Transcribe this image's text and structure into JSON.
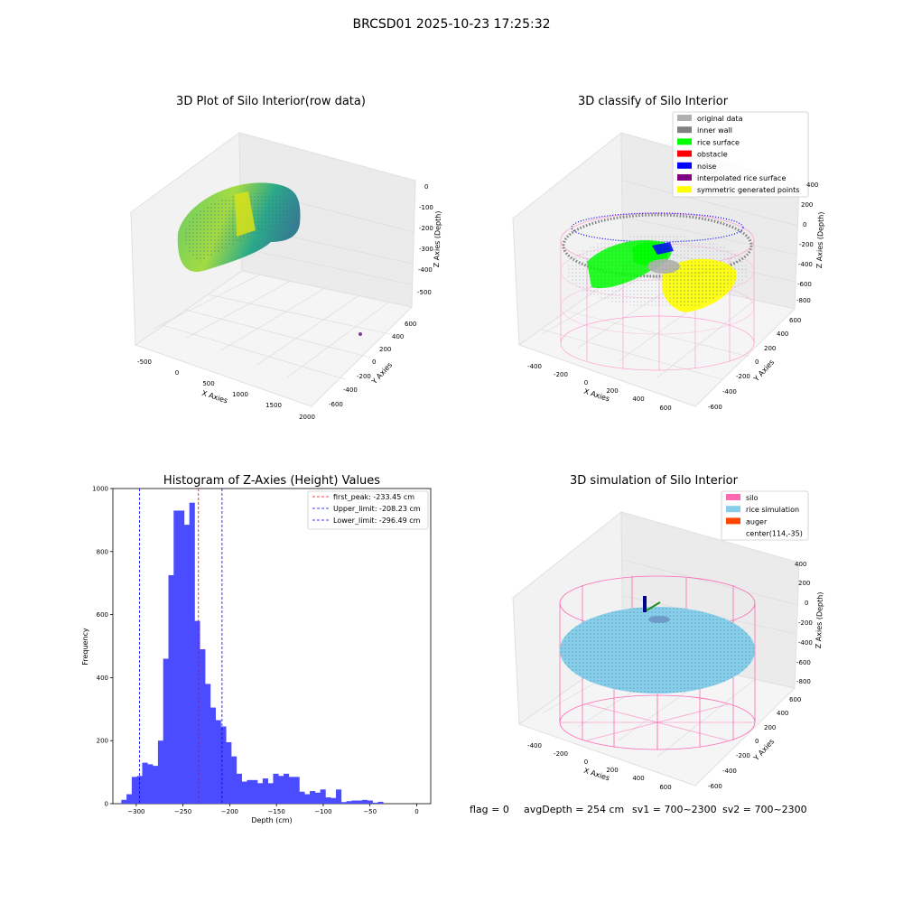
{
  "figure": {
    "suptitle": "BRCSD01 2025-10-23 17:25:32",
    "footer": {
      "flag": "flag = 0",
      "avg_depth": "avgDepth = 254 cm",
      "sv1": "sv1 = 700~2300",
      "sv2": "sv2 = 700~2300"
    }
  },
  "colors": {
    "histogram_bar": "#4b4bff",
    "first_peak_line": "#ff0000",
    "limit_lines": "#0000ff",
    "original_data": "#b0b0b0",
    "inner_wall": "#808080",
    "rice_surface": "#00ff00",
    "obstacle": "#ff0000",
    "noise": "#0000ff",
    "interpolated_rice_surface": "#800080",
    "symmetric_generated_points": "#ffff00",
    "silo": "#ff69b4",
    "rice_simulation": "#87ceeb",
    "auger": "#ff4500"
  },
  "chart_data": [
    {
      "type": "scatter",
      "subtype": "3d",
      "title": "3D Plot of Silo Interior(row data)",
      "xlabel": "X Axies",
      "ylabel": "Y Axies",
      "zlabel": "Z Axies (Depth)",
      "x_ticks": [
        "-500",
        "0",
        "500",
        "1000",
        "1500",
        "2000"
      ],
      "y_ticks": [
        "-600",
        "-400",
        "-200",
        "0",
        "200",
        "400",
        "600"
      ],
      "z_ticks": [
        "0",
        "-100",
        "-200",
        "-300",
        "-400",
        "-500"
      ],
      "grid": true
    },
    {
      "type": "scatter",
      "subtype": "3d",
      "title": "3D classify of Silo Interior",
      "xlabel": "X Axies",
      "ylabel": "Y Axies",
      "zlabel": "Z Axies (Depth)",
      "x_ticks": [
        "-400",
        "-200",
        "0",
        "200",
        "400",
        "600"
      ],
      "y_ticks": [
        "-600",
        "-400",
        "-200",
        "0",
        "200",
        "400",
        "600"
      ],
      "z_ticks": [
        "200",
        "0",
        "-200",
        "-400",
        "-600",
        "-800"
      ],
      "z_ticks_top": "400",
      "legend": [
        {
          "name": "original data",
          "color": "#b0b0b0"
        },
        {
          "name": "inner wall",
          "color": "#808080"
        },
        {
          "name": "rice surface",
          "color": "#00ff00"
        },
        {
          "name": "obstacle",
          "color": "#ff0000"
        },
        {
          "name": "noise",
          "color": "#0000ff"
        },
        {
          "name": "interpolated rice surface",
          "color": "#800080"
        },
        {
          "name": "symmetric generated points",
          "color": "#ffff00"
        }
      ],
      "legend_position": "top-right",
      "grid": true
    },
    {
      "type": "bar",
      "subtype": "histogram",
      "title": "Histogram of Z-Axies (Height) Values",
      "xlabel": "Depth (cm)",
      "ylabel": "Frequency",
      "xlim": [
        -325,
        15
      ],
      "ylim": [
        0,
        1000
      ],
      "x_ticks": [
        -300,
        -250,
        -200,
        -150,
        -100,
        -50,
        0
      ],
      "y_ticks": [
        0,
        200,
        400,
        600,
        800,
        1000
      ],
      "bin_start": -316,
      "bin_width": 5.6,
      "values": [
        12,
        30,
        85,
        88,
        130,
        125,
        120,
        200,
        460,
        725,
        930,
        930,
        885,
        955,
        580,
        490,
        380,
        305,
        265,
        245,
        195,
        150,
        95,
        70,
        75,
        75,
        65,
        80,
        65,
        95,
        88,
        95,
        85,
        85,
        38,
        30,
        40,
        35,
        45,
        20,
        18,
        45,
        5,
        8,
        10,
        10,
        12,
        10,
        3,
        6
      ],
      "vlines": [
        {
          "label": "first_peak: -233.45 cm",
          "x": -233.45,
          "color": "#ff0000"
        },
        {
          "label": "Upper_limit: -208.23 cm",
          "x": -208.23,
          "color": "#0000ff"
        },
        {
          "label": "Lower_limit: -296.49 cm",
          "x": -296.49,
          "color": "#0000ff"
        }
      ],
      "legend_position": "top-right",
      "grid": false
    },
    {
      "type": "scatter",
      "subtype": "3d",
      "title": "3D simulation of Silo Interior",
      "xlabel": "X Axies",
      "ylabel": "Y Axies",
      "zlabel": "Z Axies (Depth)",
      "x_ticks": [
        "-400",
        "-200",
        "0",
        "200",
        "400",
        "600"
      ],
      "y_ticks": [
        "-600",
        "-400",
        "-200",
        "0",
        "200",
        "400",
        "600"
      ],
      "z_ticks": [
        "400",
        "200",
        "0",
        "-200",
        "-400",
        "-600",
        "-800"
      ],
      "legend": [
        {
          "name": "silo",
          "color": "#ff69b4"
        },
        {
          "name": "rice simulation",
          "color": "#87ceeb"
        },
        {
          "name": "auger",
          "color": "#ff4500"
        },
        {
          "name": "center(114,-35)",
          "color": ""
        }
      ],
      "legend_position": "top-right",
      "grid": true
    }
  ]
}
